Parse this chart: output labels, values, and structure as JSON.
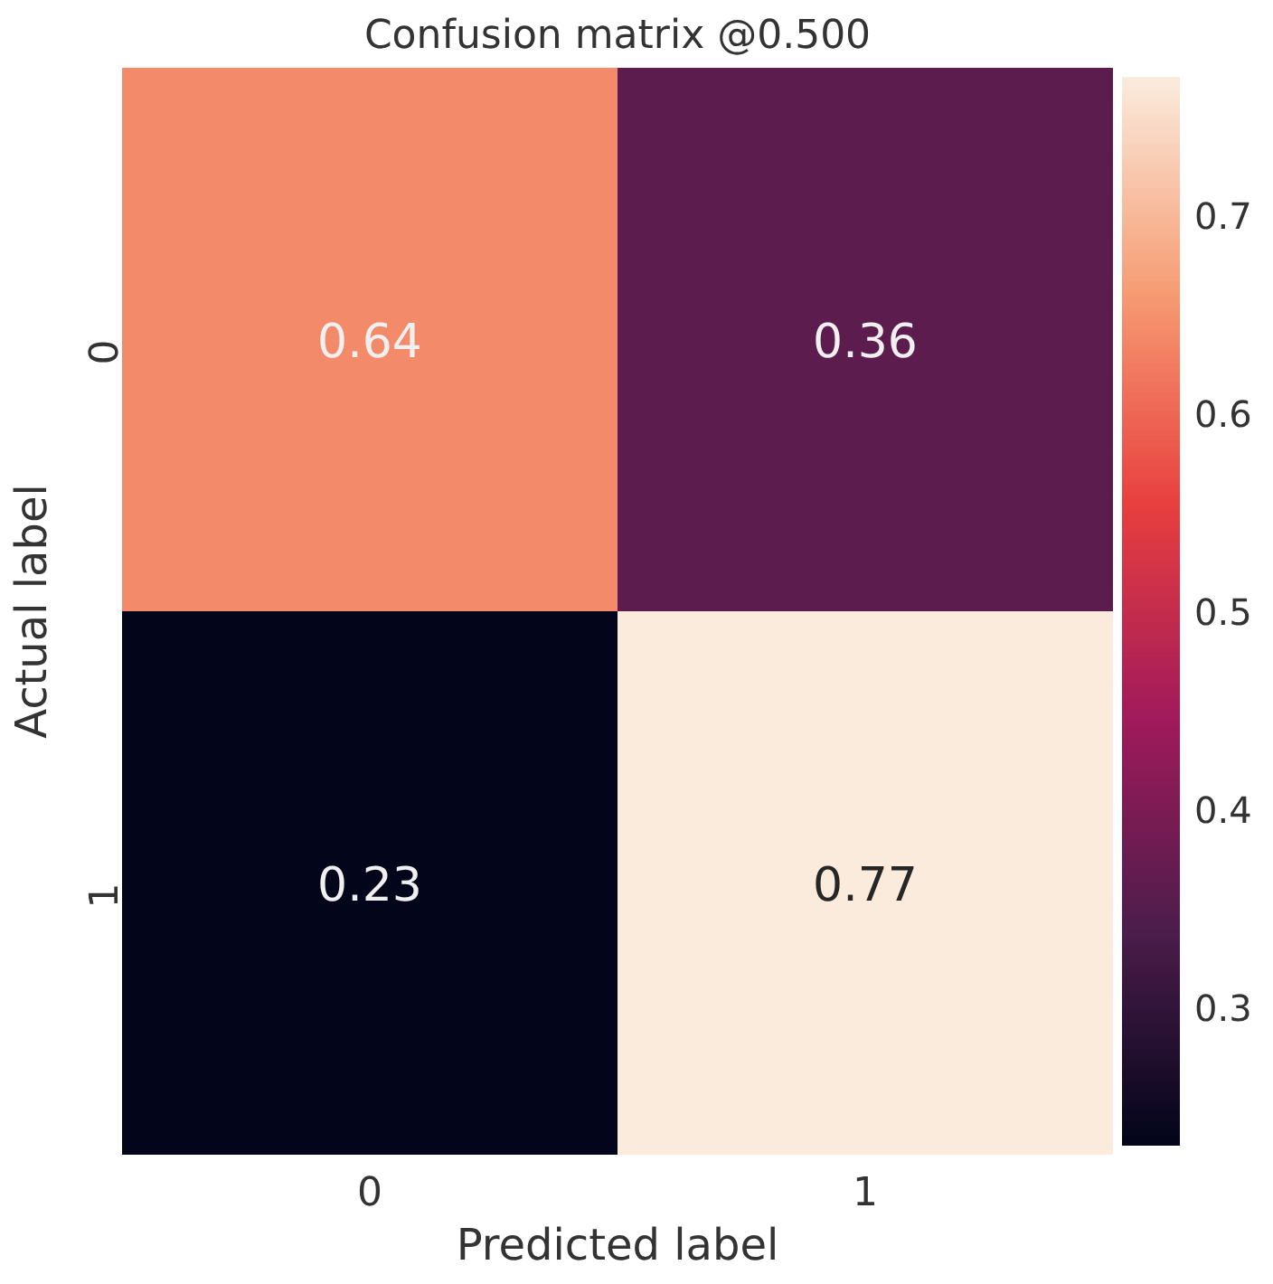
{
  "chart_data": {
    "type": "heatmap",
    "title": "Confusion matrix @0.500",
    "xlabel": "Predicted label",
    "ylabel": "Actual label",
    "categories": [
      "0",
      "1"
    ],
    "y_categories": [
      "0",
      "1"
    ],
    "cells": [
      [
        0.64,
        0.36
      ],
      [
        0.23,
        0.77
      ]
    ],
    "clim": [
      0.23,
      0.77
    ],
    "cticks": [
      0.3,
      0.4,
      0.5,
      0.6,
      0.7
    ],
    "data_labels": true
  }
}
